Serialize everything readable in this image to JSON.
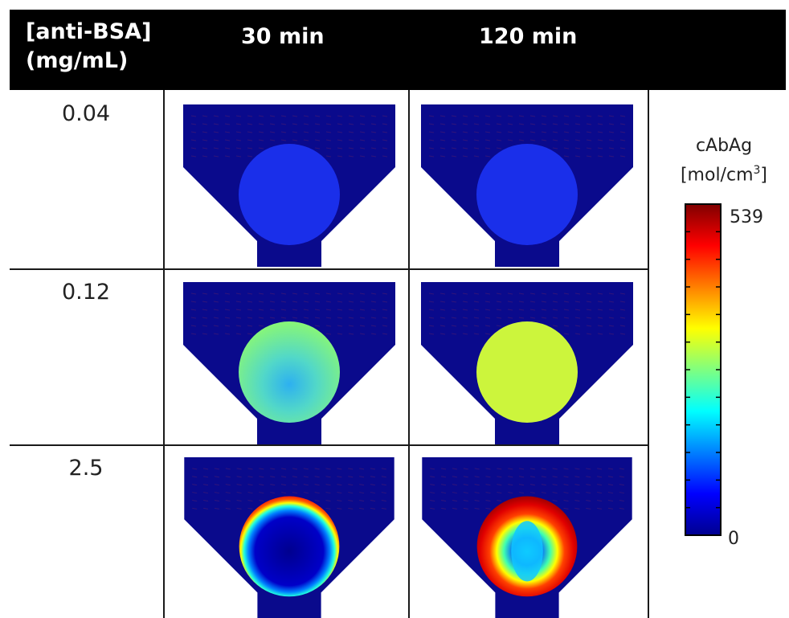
{
  "header": {
    "col1": "[anti-BSA]\n(mg/mL)",
    "col2": "30 min",
    "col3": "120 min"
  },
  "rows": [
    {
      "label": "0.04",
      "panels": [
        {
          "time": "30 min",
          "pattern": "uniform",
          "color": "#1a2fea"
        },
        {
          "time": "120 min",
          "pattern": "uniform",
          "color": "#1a2fea"
        }
      ]
    },
    {
      "label": "0.12",
      "panels": [
        {
          "time": "30 min",
          "pattern": "gradient",
          "outer": "#86f57a",
          "inner": "#2db0f0"
        },
        {
          "time": "120 min",
          "pattern": "uniform",
          "color": "#ccf53c"
        }
      ]
    },
    {
      "label": "2.5",
      "panels": [
        {
          "time": "30 min",
          "pattern": "ring",
          "ring": "thin"
        },
        {
          "time": "120 min",
          "pattern": "ring",
          "ring": "thick"
        }
      ]
    }
  ],
  "colorbar": {
    "title": "cAbAg",
    "unit_prefix": "[mol/cm",
    "unit_sup": "3",
    "unit_suffix": "]",
    "max_label": "539",
    "min_label": "0",
    "max": 539,
    "min": 0,
    "colormap": "jet"
  },
  "colors": {
    "background_domain": "#0a0a8c",
    "header_bg": "#000000",
    "header_text": "#ffffff"
  }
}
